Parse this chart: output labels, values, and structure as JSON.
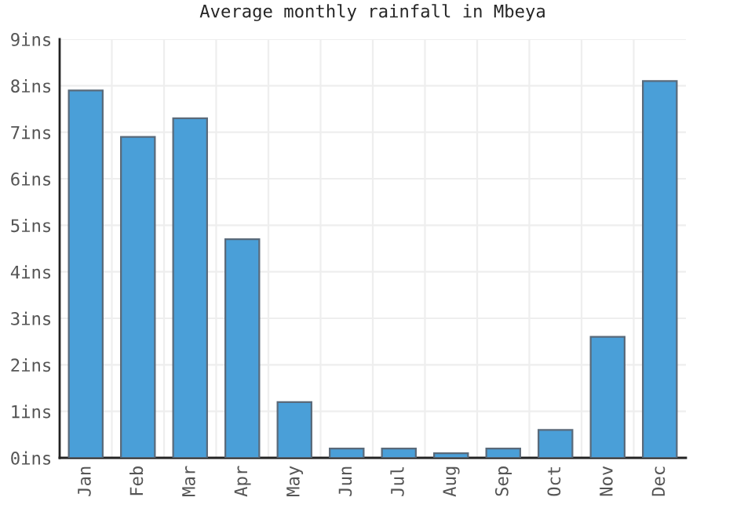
{
  "chart_data": {
    "type": "bar",
    "title": "Average monthly rainfall in Mbeya",
    "categories": [
      "Jan",
      "Feb",
      "Mar",
      "Apr",
      "May",
      "Jun",
      "Jul",
      "Aug",
      "Sep",
      "Oct",
      "Nov",
      "Dec"
    ],
    "values": [
      7.9,
      6.9,
      7.3,
      4.7,
      1.2,
      0.2,
      0.2,
      0.1,
      0.2,
      0.6,
      2.6,
      8.1
    ],
    "color": "#4a9fd8",
    "ylim": [
      0,
      9
    ],
    "yticks": [
      {
        "value": 0,
        "label": "0ins"
      },
      {
        "value": 1,
        "label": "1ins"
      },
      {
        "value": 2,
        "label": "2ins"
      },
      {
        "value": 3,
        "label": "3ins"
      },
      {
        "value": 4,
        "label": "4ins"
      },
      {
        "value": 5,
        "label": "5ins"
      },
      {
        "value": 6,
        "label": "6ins"
      },
      {
        "value": 7,
        "label": "7ins"
      },
      {
        "value": 8,
        "label": "8ins"
      },
      {
        "value": 9,
        "label": "9ins"
      }
    ],
    "grid": true
  }
}
